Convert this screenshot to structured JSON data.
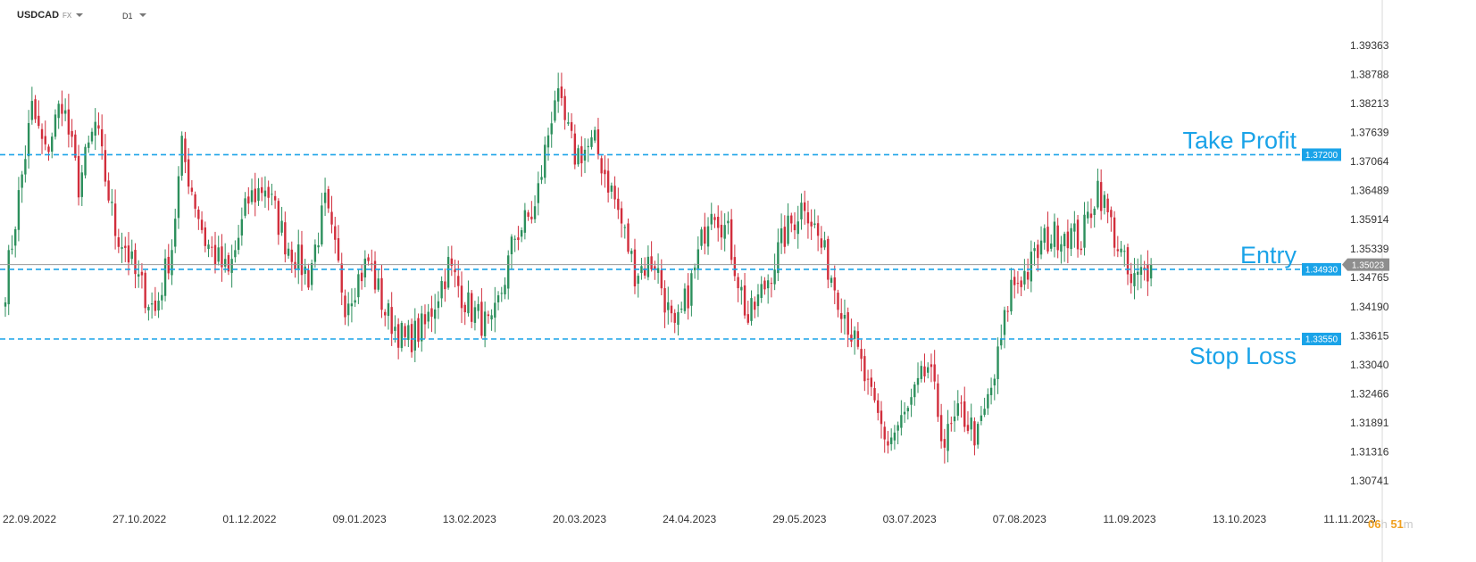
{
  "header": {
    "symbol": "USDCAD",
    "symbol_type": "FX",
    "timeframe": "D1"
  },
  "timer": {
    "hours": "06",
    "h_unit": "h",
    "minutes": "51",
    "m_unit": "m"
  },
  "colors": {
    "up": "#2c8f5c",
    "down": "#d12e3c",
    "level": "#1aa3e8",
    "price_tag": "#8e8e8e"
  },
  "chart_data": {
    "type": "candlestick",
    "ylim": [
      1.30741,
      1.39363
    ],
    "y_ticks": [
      "1.39363",
      "1.38788",
      "1.38213",
      "1.37639",
      "1.37064",
      "1.36489",
      "1.35914",
      "1.35339",
      "1.34765",
      "1.34190",
      "1.33615",
      "1.33040",
      "1.32466",
      "1.31891",
      "1.31316",
      "1.30741"
    ],
    "x_ticks": [
      "22.09.2022",
      "27.10.2022",
      "01.12.2022",
      "09.01.2023",
      "13.02.2023",
      "20.03.2023",
      "24.04.2023",
      "29.05.2023",
      "03.07.2023",
      "07.08.2023",
      "11.09.2023",
      "13.10.2023",
      "11.11.2023"
    ],
    "current_price": "1.35023",
    "levels": [
      {
        "label": "Take Profit",
        "value": 1.372,
        "tag": "1.37200"
      },
      {
        "label": "Entry",
        "value": 1.3493,
        "tag": "1.34930"
      },
      {
        "label": "Stop Loss",
        "value": 1.3355,
        "tag": "1.33550"
      }
    ],
    "anchors": [
      [
        0,
        1.346
      ],
      [
        8,
        1.381
      ],
      [
        12,
        1.372
      ],
      [
        17,
        1.383
      ],
      [
        22,
        1.366
      ],
      [
        27,
        1.378
      ],
      [
        33,
        1.357
      ],
      [
        36,
        1.354
      ],
      [
        39,
        1.348
      ],
      [
        45,
        1.341
      ],
      [
        50,
        1.354
      ],
      [
        53,
        1.373
      ],
      [
        60,
        1.355
      ],
      [
        67,
        1.348
      ],
      [
        73,
        1.363
      ],
      [
        78,
        1.366
      ],
      [
        84,
        1.355
      ],
      [
        91,
        1.348
      ],
      [
        96,
        1.362
      ],
      [
        102,
        1.343
      ],
      [
        109,
        1.351
      ],
      [
        114,
        1.341
      ],
      [
        120,
        1.335
      ],
      [
        126,
        1.338
      ],
      [
        133,
        1.35
      ],
      [
        139,
        1.342
      ],
      [
        146,
        1.337
      ],
      [
        153,
        1.356
      ],
      [
        159,
        1.361
      ],
      [
        165,
        1.384
      ],
      [
        171,
        1.372
      ],
      [
        177,
        1.374
      ],
      [
        183,
        1.363
      ],
      [
        189,
        1.349
      ],
      [
        195,
        1.351
      ],
      [
        201,
        1.336
      ],
      [
        207,
        1.349
      ],
      [
        212,
        1.363
      ],
      [
        217,
        1.356
      ],
      [
        223,
        1.339
      ],
      [
        228,
        1.346
      ],
      [
        234,
        1.356
      ],
      [
        240,
        1.363
      ],
      [
        247,
        1.35
      ],
      [
        253,
        1.339
      ],
      [
        260,
        1.323
      ],
      [
        265,
        1.315
      ],
      [
        271,
        1.321
      ],
      [
        277,
        1.33
      ],
      [
        282,
        1.315
      ],
      [
        287,
        1.321
      ],
      [
        292,
        1.316
      ],
      [
        297,
        1.328
      ],
      [
        302,
        1.346
      ],
      [
        307,
        1.349
      ],
      [
        312,
        1.355
      ],
      [
        318,
        1.357
      ],
      [
        323,
        1.355
      ],
      [
        328,
        1.366
      ],
      [
        333,
        1.356
      ],
      [
        338,
        1.346
      ],
      [
        342,
        1.349
      ],
      [
        344,
        1.35
      ]
    ]
  }
}
